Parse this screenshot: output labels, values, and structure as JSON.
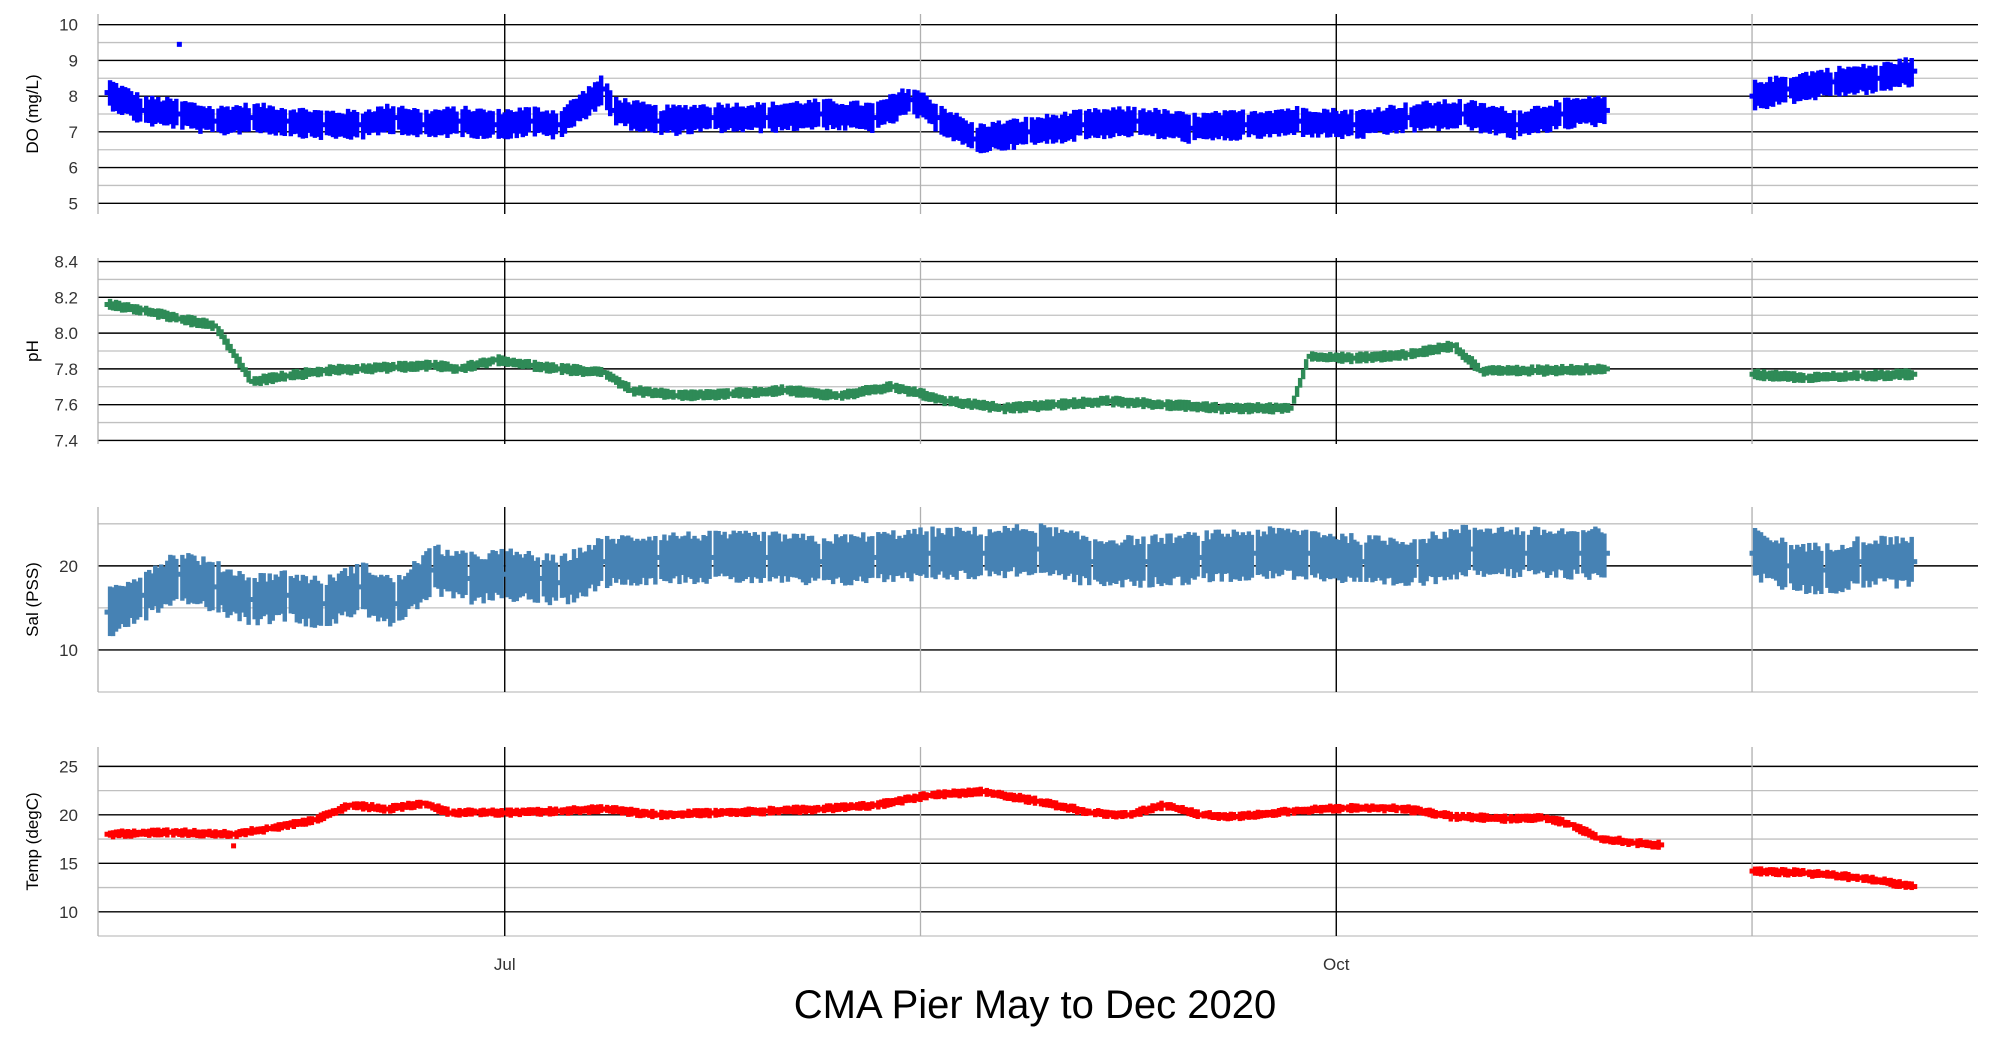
{
  "chart_data": {
    "type": "scatter",
    "title": "CMA Pier May to Dec 2020",
    "x_axis": {
      "type": "date",
      "range": [
        "2020-05-17",
        "2020-12-11"
      ],
      "major_ticks": [
        {
          "date": "2020-07-01",
          "label": "Jul"
        },
        {
          "date": "2020-10-01",
          "label": "Oct"
        }
      ],
      "minor_ticks": [
        "2020-05-17",
        "2020-08-16",
        "2020-11-16"
      ]
    },
    "grid": true,
    "panels": [
      {
        "ylabel": "DO (mg/L)",
        "color": "#0000ff",
        "ylim": [
          4.7,
          10.3
        ],
        "major_ticks": [
          5,
          6,
          7,
          8,
          9,
          10
        ],
        "band": 0.45,
        "points": [
          [
            "2020-05-18",
            8.1
          ],
          [
            "2020-05-22",
            7.6
          ],
          [
            "2020-05-26",
            7.5
          ],
          [
            "2020-05-30",
            7.3
          ],
          [
            "2020-06-03",
            7.4
          ],
          [
            "2020-06-07",
            7.3
          ],
          [
            "2020-06-11",
            7.2
          ],
          [
            "2020-06-15",
            7.2
          ],
          [
            "2020-06-19",
            7.4
          ],
          [
            "2020-06-22",
            7.2
          ],
          [
            "2020-06-26",
            7.3
          ],
          [
            "2020-06-30",
            7.2
          ],
          [
            "2020-07-04",
            7.3
          ],
          [
            "2020-07-07",
            7.2
          ],
          [
            "2020-07-12",
            8.2
          ],
          [
            "2020-07-13",
            7.6
          ],
          [
            "2020-07-18",
            7.3
          ],
          [
            "2020-07-24",
            7.4
          ],
          [
            "2020-07-30",
            7.4
          ],
          [
            "2020-08-05",
            7.5
          ],
          [
            "2020-08-11",
            7.4
          ],
          [
            "2020-08-15",
            7.9
          ],
          [
            "2020-08-18",
            7.4
          ],
          [
            "2020-08-22",
            6.8
          ],
          [
            "2020-08-28",
            7.0
          ],
          [
            "2020-09-03",
            7.2
          ],
          [
            "2020-09-09",
            7.3
          ],
          [
            "2020-09-15",
            7.1
          ],
          [
            "2020-09-21",
            7.2
          ],
          [
            "2020-09-27",
            7.3
          ],
          [
            "2020-10-03",
            7.2
          ],
          [
            "2020-10-09",
            7.4
          ],
          [
            "2020-10-15",
            7.5
          ],
          [
            "2020-10-21",
            7.2
          ],
          [
            "2020-10-26",
            7.5
          ],
          [
            "2020-10-31",
            7.6
          ],
          [
            "2020-11-16",
            8.0
          ],
          [
            "2020-11-20",
            8.2
          ],
          [
            "2020-11-25",
            8.4
          ],
          [
            "2020-11-30",
            8.5
          ],
          [
            "2020-12-04",
            8.7
          ]
        ],
        "outliers": [
          [
            "2020-05-26",
            9.45
          ]
        ]
      },
      {
        "ylabel": "pH",
        "color": "#2e8b57",
        "ylim": [
          7.38,
          8.42
        ],
        "major_ticks": [
          7.4,
          7.6,
          7.8,
          8.0,
          8.2,
          8.4
        ],
        "band": 0.035,
        "points": [
          [
            "2020-05-18",
            8.16
          ],
          [
            "2020-05-22",
            8.13
          ],
          [
            "2020-05-26",
            8.08
          ],
          [
            "2020-05-30",
            8.04
          ],
          [
            "2020-06-03",
            7.73
          ],
          [
            "2020-06-07",
            7.76
          ],
          [
            "2020-06-11",
            7.79
          ],
          [
            "2020-06-15",
            7.8
          ],
          [
            "2020-06-19",
            7.81
          ],
          [
            "2020-06-23",
            7.82
          ],
          [
            "2020-06-26",
            7.8
          ],
          [
            "2020-06-30",
            7.85
          ],
          [
            "2020-07-04",
            7.82
          ],
          [
            "2020-07-07",
            7.8
          ],
          [
            "2020-07-12",
            7.78
          ],
          [
            "2020-07-15",
            7.68
          ],
          [
            "2020-07-20",
            7.65
          ],
          [
            "2020-07-26",
            7.66
          ],
          [
            "2020-08-01",
            7.68
          ],
          [
            "2020-08-07",
            7.65
          ],
          [
            "2020-08-13",
            7.7
          ],
          [
            "2020-08-19",
            7.62
          ],
          [
            "2020-08-25",
            7.58
          ],
          [
            "2020-08-31",
            7.6
          ],
          [
            "2020-09-06",
            7.62
          ],
          [
            "2020-09-12",
            7.6
          ],
          [
            "2020-09-18",
            7.58
          ],
          [
            "2020-09-26",
            7.58
          ],
          [
            "2020-09-28",
            7.87
          ],
          [
            "2020-10-03",
            7.86
          ],
          [
            "2020-10-09",
            7.88
          ],
          [
            "2020-10-14",
            7.93
          ],
          [
            "2020-10-17",
            7.79
          ],
          [
            "2020-10-23",
            7.79
          ],
          [
            "2020-10-31",
            7.8
          ],
          [
            "2020-11-16",
            7.77
          ],
          [
            "2020-11-22",
            7.75
          ],
          [
            "2020-11-28",
            7.76
          ],
          [
            "2020-12-04",
            7.77
          ]
        ]
      },
      {
        "ylabel": "Sal (PSS)",
        "color": "#4682b4",
        "ylim": [
          5,
          27
        ],
        "major_ticks": [
          10,
          20
        ],
        "band": 3.2,
        "points": [
          [
            "2020-05-18",
            14.5
          ],
          [
            "2020-05-22",
            16.5
          ],
          [
            "2020-05-26",
            19.0
          ],
          [
            "2020-05-30",
            17.5
          ],
          [
            "2020-06-03",
            16.0
          ],
          [
            "2020-06-07",
            16.5
          ],
          [
            "2020-06-11",
            15.5
          ],
          [
            "2020-06-15",
            17.5
          ],
          [
            "2020-06-19",
            15.5
          ],
          [
            "2020-06-23",
            19.5
          ],
          [
            "2020-06-27",
            18.5
          ],
          [
            "2020-07-01",
            19.0
          ],
          [
            "2020-07-05",
            18.5
          ],
          [
            "2020-07-07",
            18.0
          ],
          [
            "2020-07-12",
            20.5
          ],
          [
            "2020-07-18",
            21.0
          ],
          [
            "2020-07-24",
            21.0
          ],
          [
            "2020-07-30",
            21.0
          ],
          [
            "2020-08-05",
            20.5
          ],
          [
            "2020-08-11",
            21.0
          ],
          [
            "2020-08-17",
            21.5
          ],
          [
            "2020-08-23",
            21.5
          ],
          [
            "2020-08-29",
            22.0
          ],
          [
            "2020-09-04",
            20.5
          ],
          [
            "2020-09-10",
            20.5
          ],
          [
            "2020-09-16",
            21.0
          ],
          [
            "2020-09-22",
            21.5
          ],
          [
            "2020-09-28",
            21.5
          ],
          [
            "2020-10-04",
            20.5
          ],
          [
            "2020-10-10",
            20.5
          ],
          [
            "2020-10-16",
            22.0
          ],
          [
            "2020-10-22",
            21.5
          ],
          [
            "2020-10-28",
            21.5
          ],
          [
            "2020-10-31",
            21.5
          ],
          [
            "2020-11-16",
            21.5
          ],
          [
            "2020-11-20",
            20.0
          ],
          [
            "2020-11-24",
            19.5
          ],
          [
            "2020-11-28",
            20.5
          ],
          [
            "2020-12-04",
            20.5
          ]
        ]
      },
      {
        "ylabel": "Temp (degC)",
        "color": "#ff0000",
        "ylim": [
          7.5,
          27
        ],
        "major_ticks": [
          10,
          15,
          20,
          25
        ],
        "band": 0.55,
        "points": [
          [
            "2020-05-18",
            18.0
          ],
          [
            "2020-05-25",
            18.2
          ],
          [
            "2020-06-01",
            18.0
          ],
          [
            "2020-06-05",
            18.6
          ],
          [
            "2020-06-10",
            19.5
          ],
          [
            "2020-06-14",
            21.0
          ],
          [
            "2020-06-18",
            20.6
          ],
          [
            "2020-06-22",
            21.2
          ],
          [
            "2020-06-25",
            20.2
          ],
          [
            "2020-06-28",
            20.3
          ],
          [
            "2020-07-01",
            20.2
          ],
          [
            "2020-07-07",
            20.4
          ],
          [
            "2020-07-12",
            20.6
          ],
          [
            "2020-07-18",
            20.0
          ],
          [
            "2020-07-24",
            20.2
          ],
          [
            "2020-07-30",
            20.4
          ],
          [
            "2020-08-05",
            20.6
          ],
          [
            "2020-08-11",
            21.0
          ],
          [
            "2020-08-17",
            22.0
          ],
          [
            "2020-08-23",
            22.4
          ],
          [
            "2020-08-29",
            21.4
          ],
          [
            "2020-09-04",
            20.2
          ],
          [
            "2020-09-08",
            20.0
          ],
          [
            "2020-09-12",
            21.0
          ],
          [
            "2020-09-16",
            20.0
          ],
          [
            "2020-09-20",
            19.8
          ],
          [
            "2020-09-26",
            20.4
          ],
          [
            "2020-10-02",
            20.7
          ],
          [
            "2020-10-08",
            20.7
          ],
          [
            "2020-10-14",
            19.8
          ],
          [
            "2020-10-20",
            19.6
          ],
          [
            "2020-10-24",
            19.7
          ],
          [
            "2020-10-27",
            19.0
          ],
          [
            "2020-10-30",
            17.6
          ],
          [
            "2020-11-03",
            17.1
          ],
          [
            "2020-11-06",
            16.9
          ],
          [
            "2020-11-16",
            14.2
          ],
          [
            "2020-11-22",
            14.0
          ],
          [
            "2020-11-28",
            13.5
          ],
          [
            "2020-12-04",
            12.6
          ]
        ],
        "outliers": [
          [
            "2020-06-01",
            16.8
          ]
        ]
      }
    ]
  }
}
